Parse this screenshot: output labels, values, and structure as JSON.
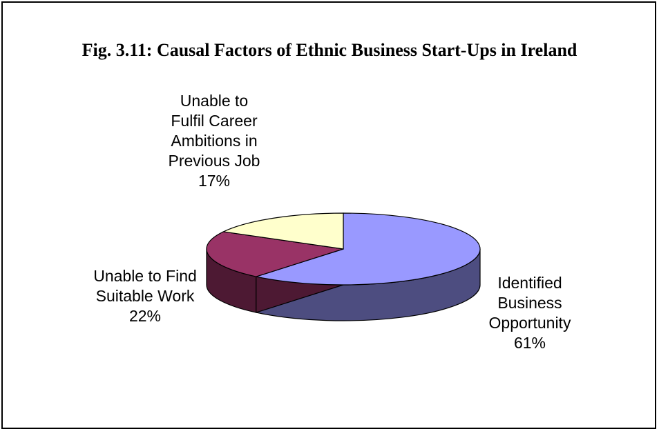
{
  "chart_data": {
    "type": "pie",
    "title": "Fig. 3.11: Causal Factors of Ethnic Business Start-Ups in Ireland",
    "style": "3d",
    "slices": [
      {
        "label": "Identified Business Opportunity",
        "value": 61,
        "value_label": "61%",
        "color": "#9999ff",
        "side_color": "#4d4d80"
      },
      {
        "label": "Unable to Find Suitable Work",
        "value": 22,
        "value_label": "22%",
        "color": "#993366",
        "side_color": "#4d1933"
      },
      {
        "label": "Unable to Fulfil Career Ambitions in Previous Job",
        "value": 17,
        "value_label": "17%",
        "color": "#ffffcc",
        "side_color": "#808066"
      }
    ],
    "label_lines": [
      "Identified\nBusiness\nOpportunity",
      "Unable to Find\nSuitable Work",
      "Unable to\nFulfil Career\nAmbitions in\nPrevious Job"
    ]
  }
}
